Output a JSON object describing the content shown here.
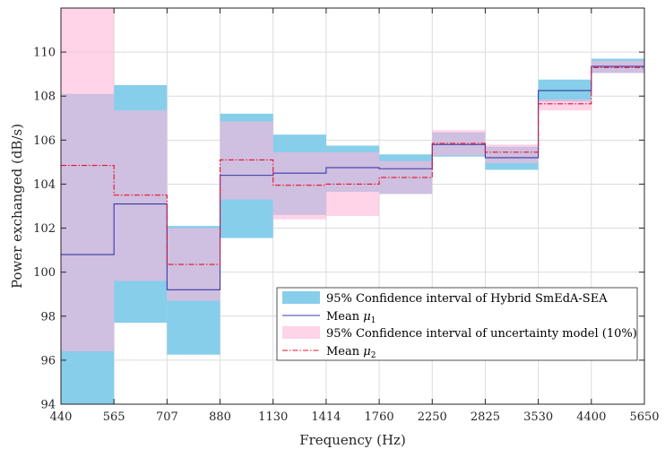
{
  "chart_data": {
    "type": "area",
    "title": "",
    "xlabel": "Frequency (Hz)",
    "ylabel": "Power exchanged (dB/s)",
    "ylim": [
      94,
      112
    ],
    "grid": true,
    "legend_placement": "bottom-right",
    "y_ticks": [
      94,
      96,
      98,
      100,
      102,
      104,
      106,
      108,
      110
    ],
    "x_tick_labels": [
      "440",
      "565",
      "707",
      "880",
      "1130",
      "1414",
      "1760",
      "2250",
      "2825",
      "3530",
      "4400",
      "5650"
    ],
    "series": [
      {
        "name": "95% Confidence interval of Hybrid SmEdA-SEA",
        "kind": "band",
        "lower": [
          94.0,
          97.7,
          96.25,
          101.55,
          102.6,
          103.65,
          103.55,
          105.25,
          104.65,
          107.75,
          109.05
        ],
        "upper": [
          108.1,
          108.5,
          102.1,
          107.2,
          106.25,
          105.75,
          105.35,
          106.35,
          105.7,
          108.75,
          109.7
        ]
      },
      {
        "name": "Mean",
        "symbol": "μ",
        "subscript": "1",
        "kind": "step",
        "values": [
          100.8,
          103.1,
          99.2,
          104.4,
          104.5,
          104.75,
          104.7,
          105.8,
          105.2,
          108.25,
          109.35
        ]
      },
      {
        "name": "95% Confidence interval of uncertainty model (10%)",
        "kind": "band",
        "lower": [
          96.4,
          99.6,
          98.7,
          103.3,
          102.4,
          102.55,
          103.55,
          105.3,
          104.95,
          107.35,
          109.05
        ],
        "upper": [
          112.0,
          107.35,
          102.0,
          106.85,
          105.45,
          105.45,
          105.05,
          106.45,
          105.8,
          107.85,
          109.6
        ]
      },
      {
        "name": "Mean",
        "symbol": "μ",
        "subscript": "2",
        "kind": "step",
        "values": [
          104.85,
          103.5,
          100.35,
          105.1,
          103.95,
          104.0,
          104.3,
          105.85,
          105.45,
          107.65,
          109.3
        ]
      }
    ],
    "colors": {
      "band1": "#87ceeb",
      "band2": "#ffb6d9",
      "mean1": "#3a3aa6",
      "mean2": "#e8102a",
      "grid": "#dcdcdc",
      "axis": "#262626"
    }
  }
}
